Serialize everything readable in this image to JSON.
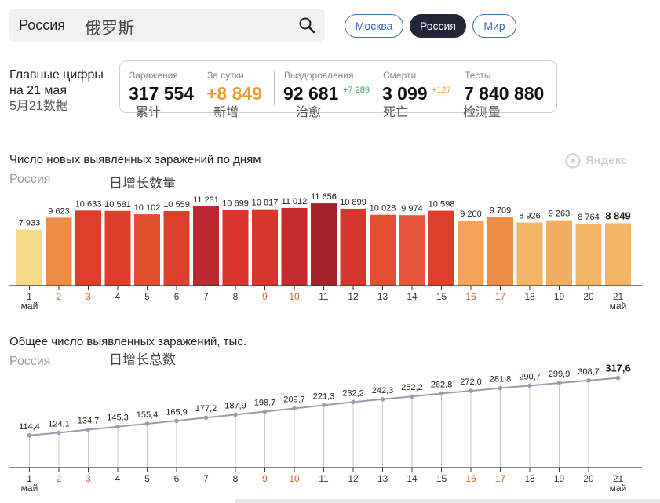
{
  "search": {
    "query": "Россия",
    "annotation_zh": "俄罗斯"
  },
  "region_pills": [
    {
      "label": "Москва",
      "active": false
    },
    {
      "label": "Россия",
      "active": true
    },
    {
      "label": "Мир",
      "active": false
    }
  ],
  "summary": {
    "title_line1": "Главные цифры",
    "title_line2": "на 21 мая",
    "title_zh": "5月21数据",
    "stats": [
      {
        "label": "Заражения",
        "value": "317 554",
        "delta": "",
        "zh": "累计"
      },
      {
        "label": "За сутки",
        "value": "+8 849",
        "delta": "",
        "zh": "新增"
      },
      {
        "label": "Выздоровления",
        "value": "92 681",
        "delta": "+7 289",
        "zh": "治愈"
      },
      {
        "label": "Смерти",
        "value": "3 099",
        "delta": "+127",
        "zh": "死亡"
      },
      {
        "label": "Тесты",
        "value": "7 840 880",
        "delta": "",
        "zh": "检测量"
      }
    ]
  },
  "watermark": {
    "text": "Яндекс"
  },
  "colors": {
    "delta_green": "#3aa55c",
    "delta_orange": "#f29a2e",
    "weekend": "#e05a1e",
    "line": "#9a9cae"
  },
  "chart_data": [
    {
      "type": "bar",
      "title": "Число новых выявленных заражений по дням",
      "subtitle": "Россия",
      "annotation_zh": "日增长数量",
      "categories": [
        "1",
        "2",
        "3",
        "4",
        "5",
        "6",
        "7",
        "8",
        "9",
        "10",
        "11",
        "12",
        "13",
        "14",
        "15",
        "16",
        "17",
        "18",
        "19",
        "20",
        "21"
      ],
      "x_month_label": "май",
      "values": [
        7933,
        9623,
        10633,
        10581,
        10102,
        10559,
        11231,
        10699,
        10817,
        11012,
        11656,
        10899,
        10028,
        9974,
        10598,
        9200,
        9709,
        8926,
        9263,
        8764,
        8849
      ],
      "value_labels": [
        "7 933",
        "9 623",
        "10 633",
        "10 581",
        "10 102",
        "10 559",
        "11 231",
        "10 699",
        "10 817",
        "11 012",
        "11 656",
        "10 899",
        "10 028",
        "9 974",
        "10 598",
        "9 200",
        "9 709",
        "8 926",
        "9 263",
        "8 764",
        "8 849"
      ],
      "bar_colors": [
        "#f7d98a",
        "#ee8c46",
        "#de3f2c",
        "#dd3e2b",
        "#e24d30",
        "#dd3f2c",
        "#b82a2f",
        "#d9352c",
        "#d8352c",
        "#c62c2d",
        "#a2232a",
        "#d8372c",
        "#e44f32",
        "#e6543a",
        "#de3e2c",
        "#f3a458",
        "#ee8c46",
        "#f3b564",
        "#f2ad5e",
        "#f3b564",
        "#f3b564"
      ],
      "weekend_days": [
        "2",
        "3",
        "9",
        "10",
        "16",
        "17"
      ],
      "ylim": [
        0,
        12000
      ]
    },
    {
      "type": "line",
      "title": "Общее число выявленных заражений, тыс.",
      "subtitle": "Россия",
      "annotation_zh": "日增长总数",
      "categories": [
        "1",
        "2",
        "3",
        "4",
        "5",
        "6",
        "7",
        "8",
        "9",
        "10",
        "11",
        "12",
        "13",
        "14",
        "15",
        "16",
        "17",
        "18",
        "19",
        "20",
        "21"
      ],
      "x_month_label": "май",
      "values": [
        114.4,
        124.1,
        134.7,
        145.3,
        155.4,
        165.9,
        177.2,
        187.9,
        198.7,
        209.7,
        221.3,
        232.2,
        242.3,
        252.2,
        262.8,
        272.0,
        281.8,
        290.7,
        299.9,
        308.7,
        317.6
      ],
      "value_labels": [
        "114,4",
        "124,1",
        "134,7",
        "145,3",
        "155,4",
        "165,9",
        "177,2",
        "187,9",
        "198,7",
        "209,7",
        "221,3",
        "232,2",
        "242,3",
        "252,2",
        "262,8",
        "272,0",
        "281,8",
        "290,7",
        "299,9",
        "308,7",
        "317,6"
      ],
      "weekend_days": [
        "2",
        "3",
        "9",
        "10",
        "16",
        "17"
      ],
      "ylim": [
        0,
        1000
      ]
    }
  ]
}
